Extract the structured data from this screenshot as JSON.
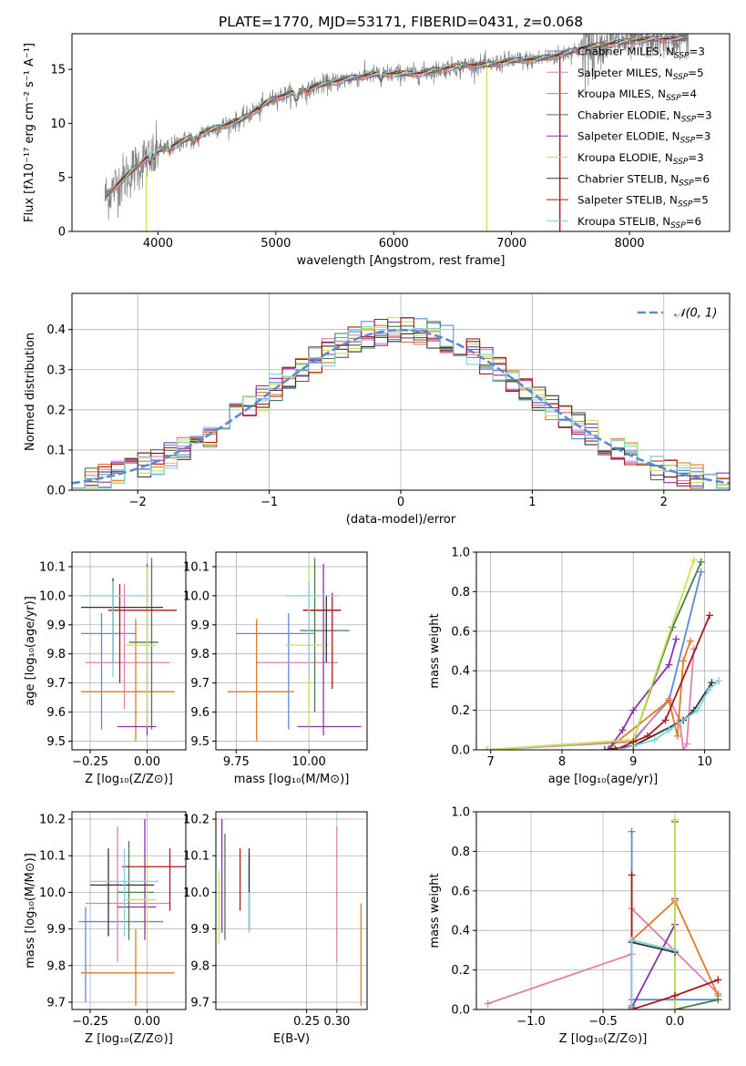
{
  "page": {
    "title": "PLATE=1770, MJD=53171, FIBERID=0431, z=0.068"
  },
  "colors": {
    "Chabrier MILES": "#5b8bd6",
    "Salpeter MILES": "#e07fb0",
    "Kroupa MILES": "#e07b22",
    "Chabrier ELODIE": "#4a7a4a",
    "Salpeter ELODIE": "#8e2fb0",
    "Kroupa ELODIE": "#c8e64a",
    "Chabrier STELIB": "#333333",
    "Salpeter STELIB": "#b01818",
    "Kroupa STELIB": "#7fd3dc",
    "data": "#808080",
    "normal": "#5b8bd6"
  },
  "chart_data": [
    {
      "id": "spectrum",
      "type": "line",
      "title": "PLATE=1770, MJD=53171, FIBERID=0431, z=0.068",
      "xlabel": "wavelength [Angstrom, rest frame]",
      "ylabel": "Flux [fλ10⁻¹⁷ erg cm⁻² s⁻¹ A⁻¹]",
      "xlim": [
        3270,
        8850
      ],
      "ylim": [
        0,
        18.3
      ],
      "xticks": [
        4000,
        5000,
        6000,
        7000,
        8000
      ],
      "yticks": [
        0,
        5,
        10,
        15
      ],
      "grid": false,
      "legend_placement": "upper right",
      "legend": [
        {
          "label": "Chabrier MILES",
          "nssp": "3"
        },
        {
          "label": "Salpeter MILES",
          "nssp": "5"
        },
        {
          "label": "Kroupa MILES",
          "nssp": "4"
        },
        {
          "label": "Chabrier ELODIE",
          "nssp": "3"
        },
        {
          "label": "Salpeter ELODIE",
          "nssp": "3"
        },
        {
          "label": "Kroupa ELODIE",
          "nssp": "3"
        },
        {
          "label": "Chabrier STELIB",
          "nssp": "6"
        },
        {
          "label": "Salpeter STELIB",
          "nssp": "5"
        },
        {
          "label": "Kroupa STELIB",
          "nssp": "6"
        }
      ],
      "continuum": [
        [
          3550,
          3.2
        ],
        [
          3650,
          4.3
        ],
        [
          3800,
          5.8
        ],
        [
          3900,
          6.8
        ],
        [
          4000,
          7.5
        ],
        [
          4100,
          7.8
        ],
        [
          4200,
          8.3
        ],
        [
          4300,
          8.8
        ],
        [
          4500,
          9.6
        ],
        [
          4700,
          10.3
        ],
        [
          4861,
          11.5
        ],
        [
          5000,
          12.4
        ],
        [
          5200,
          13.0
        ],
        [
          5400,
          13.6
        ],
        [
          5600,
          14.1
        ],
        [
          5800,
          14.5
        ],
        [
          6000,
          14.6
        ],
        [
          6200,
          14.6
        ],
        [
          6400,
          15.0
        ],
        [
          6600,
          15.4
        ],
        [
          6800,
          15.4
        ],
        [
          7000,
          15.8
        ],
        [
          7200,
          15.9
        ],
        [
          7400,
          16.3
        ],
        [
          7600,
          17.0
        ],
        [
          7800,
          17.3
        ],
        [
          8000,
          17.6
        ],
        [
          8200,
          17.8
        ],
        [
          8400,
          17.8
        ],
        [
          8500,
          17.9
        ]
      ]
    },
    {
      "id": "residuals",
      "type": "line",
      "xlabel": "(data-model)/error",
      "ylabel": "Normed distribution",
      "xlim": [
        -2.5,
        2.5
      ],
      "ylim": [
        0,
        0.49
      ],
      "xticks": [
        -2,
        -1,
        0,
        1,
        2
      ],
      "yticks": [
        0.0,
        0.1,
        0.2,
        0.3,
        0.4
      ],
      "grid": true,
      "legend_placement": "upper right",
      "legend": [
        {
          "label": "𝒩(0, 1)"
        }
      ],
      "bin_width": 0.1
    },
    {
      "id": "age-vs-Z",
      "type": "scatter",
      "xlabel": "Z [log₁₀(Z/Z⊙)]",
      "ylabel": "age  [log₁₀(age/yr)]",
      "xlim": [
        -0.33,
        0.17
      ],
      "ylim": [
        9.47,
        10.15
      ],
      "xticks": [
        -0.25,
        0.0
      ],
      "yticks": [
        9.5,
        9.6,
        9.7,
        9.8,
        9.9,
        10.0,
        10.1
      ],
      "grid": true,
      "points": [
        {
          "model": "Chabrier MILES",
          "x": -0.2,
          "xlo": -0.29,
          "xhi": -0.05,
          "y": 9.87,
          "ylo": 9.54,
          "yhi": 9.94
        },
        {
          "model": "Salpeter MILES",
          "x": -0.1,
          "xlo": -0.27,
          "xhi": 0.1,
          "y": 9.77,
          "ylo": 9.61,
          "yhi": 10.04
        },
        {
          "model": "Kroupa MILES",
          "x": -0.05,
          "xlo": -0.29,
          "xhi": 0.12,
          "y": 9.67,
          "ylo": 9.5,
          "yhi": 9.92
        },
        {
          "model": "Chabrier ELODIE",
          "x": 0.02,
          "xlo": -0.08,
          "xhi": 0.05,
          "y": 9.84,
          "ylo": 9.54,
          "yhi": 10.13
        },
        {
          "model": "Salpeter ELODIE",
          "x": 0.0,
          "xlo": -0.13,
          "xhi": 0.04,
          "y": 9.55,
          "ylo": 9.52,
          "yhi": 10.11
        },
        {
          "model": "Kroupa ELODIE",
          "x": 0.0,
          "xlo": -0.1,
          "xhi": 0.04,
          "y": 9.83,
          "ylo": 9.55,
          "yhi": 10.1
        },
        {
          "model": "Chabrier STELIB",
          "x": -0.15,
          "xlo": -0.29,
          "xhi": 0.07,
          "y": 9.96,
          "ylo": 9.77,
          "yhi": 10.06
        },
        {
          "model": "Salpeter STELIB",
          "x": -0.12,
          "xlo": -0.17,
          "xhi": 0.13,
          "y": 9.95,
          "ylo": 9.7,
          "yhi": 10.04
        },
        {
          "model": "Kroupa STELIB",
          "x": -0.15,
          "xlo": -0.29,
          "xhi": 0.0,
          "y": 10.0,
          "ylo": 9.72,
          "yhi": 10.05
        }
      ]
    },
    {
      "id": "age-vs-mass",
      "type": "scatter",
      "xlabel": "mass [log₁₀(M/M⊙)]",
      "ylabel": "",
      "xlim": [
        9.68,
        10.2
      ],
      "ylim": [
        9.47,
        10.15
      ],
      "xticks": [
        9.75,
        10.0
      ],
      "yticks": [
        9.5,
        9.6,
        9.7,
        9.8,
        9.9,
        10.0,
        10.1
      ],
      "grid": true,
      "points": [
        {
          "model": "Chabrier MILES",
          "x": 9.93,
          "xlo": 9.75,
          "xhi": 10.02,
          "y": 9.87,
          "ylo": 9.54,
          "yhi": 9.94
        },
        {
          "model": "Salpeter MILES",
          "x": 10.0,
          "xlo": 9.82,
          "xhi": 10.1,
          "y": 9.77,
          "ylo": 9.61,
          "yhi": 10.04
        },
        {
          "model": "Kroupa MILES",
          "x": 9.82,
          "xlo": 9.72,
          "xhi": 9.95,
          "y": 9.67,
          "ylo": 9.5,
          "yhi": 9.92
        },
        {
          "model": "Chabrier ELODIE",
          "x": 10.02,
          "xlo": 9.97,
          "xhi": 10.14,
          "y": 9.88,
          "ylo": 9.6,
          "yhi": 10.13
        },
        {
          "model": "Salpeter ELODIE",
          "x": 10.05,
          "xlo": 9.96,
          "xhi": 10.18,
          "y": 9.55,
          "ylo": 9.52,
          "yhi": 10.11
        },
        {
          "model": "Kroupa ELODIE",
          "x": 10.0,
          "xlo": 9.92,
          "xhi": 10.07,
          "y": 9.83,
          "ylo": 9.55,
          "yhi": 10.1
        },
        {
          "model": "Chabrier STELIB",
          "x": 10.06,
          "xlo": 9.98,
          "xhi": 10.11,
          "y": 9.95,
          "ylo": 9.77,
          "yhi": 10.0
        },
        {
          "model": "Salpeter STELIB",
          "x": 10.08,
          "xlo": 9.98,
          "xhi": 10.11,
          "y": 9.95,
          "ylo": 9.68,
          "yhi": 10.01
        },
        {
          "model": "Kroupa STELIB",
          "x": 10.0,
          "xlo": 9.92,
          "xhi": 10.1,
          "y": 10.0,
          "ylo": 9.72,
          "yhi": 10.05
        }
      ]
    },
    {
      "id": "massweight-vs-age",
      "type": "line",
      "xlabel": "age  [log₁₀(age/yr)]",
      "ylabel": "mass weight",
      "xlim": [
        6.8,
        10.35
      ],
      "ylim": [
        0.0,
        1.0
      ],
      "xticks": [
        7,
        8,
        9,
        10
      ],
      "yticks": [
        0.0,
        0.2,
        0.4,
        0.6,
        0.8,
        1.0
      ],
      "grid": true,
      "series": [
        {
          "model": "Chabrier MILES",
          "points": [
            [
              9.0,
              0.05
            ],
            [
              9.5,
              0.25
            ],
            [
              9.95,
              0.9
            ]
          ]
        },
        {
          "model": "Salpeter MILES",
          "points": [
            [
              6.95,
              0.0
            ],
            [
              9.0,
              0.04
            ],
            [
              9.5,
              0.26
            ],
            [
              9.65,
              0.15
            ],
            [
              9.7,
              0.0
            ],
            [
              9.75,
              0.03
            ],
            [
              9.85,
              0.51
            ]
          ]
        },
        {
          "model": "Kroupa MILES",
          "points": [
            [
              8.7,
              0.02
            ],
            [
              9.5,
              0.25
            ],
            [
              9.62,
              0.07
            ],
            [
              9.7,
              0.45
            ],
            [
              9.8,
              0.55
            ]
          ]
        },
        {
          "model": "Chabrier ELODIE",
          "points": [
            [
              6.95,
              0.0
            ],
            [
              9.0,
              0.05
            ],
            [
              9.55,
              0.62
            ],
            [
              9.95,
              0.95
            ]
          ]
        },
        {
          "model": "Salpeter ELODIE",
          "points": [
            [
              8.65,
              0.0
            ],
            [
              8.85,
              0.1
            ],
            [
              9.0,
              0.2
            ],
            [
              9.5,
              0.43
            ],
            [
              9.6,
              0.56
            ]
          ]
        },
        {
          "model": "Kroupa ELODIE",
          "points": [
            [
              6.95,
              0.0
            ],
            [
              9.0,
              0.05
            ],
            [
              9.85,
              0.96
            ]
          ]
        },
        {
          "model": "Chabrier STELIB",
          "points": [
            [
              8.6,
              0.0
            ],
            [
              9.0,
              0.02
            ],
            [
              9.7,
              0.15
            ],
            [
              9.85,
              0.2
            ],
            [
              10.1,
              0.34
            ]
          ]
        },
        {
          "model": "Salpeter STELIB",
          "points": [
            [
              8.75,
              0.0
            ],
            [
              9.0,
              0.04
            ],
            [
              9.2,
              0.07
            ],
            [
              9.45,
              0.15
            ],
            [
              10.07,
              0.68
            ]
          ]
        },
        {
          "model": "Kroupa STELIB",
          "points": [
            [
              8.8,
              0.0
            ],
            [
              9.3,
              0.05
            ],
            [
              9.5,
              0.1
            ],
            [
              9.9,
              0.2
            ],
            [
              10.05,
              0.3
            ],
            [
              10.2,
              0.35
            ]
          ]
        }
      ]
    },
    {
      "id": "mass-vs-Z",
      "type": "scatter",
      "xlabel": "Z [log₁₀(Z/Z⊙)]",
      "ylabel": "mass [log₁₀(M/M⊙)]",
      "xlim": [
        -0.33,
        0.17
      ],
      "ylim": [
        9.68,
        10.22
      ],
      "xticks": [
        -0.25,
        0.0
      ],
      "yticks": [
        9.7,
        9.8,
        9.9,
        10.0,
        10.1,
        10.2
      ],
      "grid": true,
      "points": [
        {
          "model": "Chabrier MILES",
          "x": -0.27,
          "xlo": -0.3,
          "xhi": 0.07,
          "y": 9.92,
          "ylo": 9.7,
          "yhi": 9.96
        },
        {
          "model": "Salpeter MILES",
          "x": -0.13,
          "xlo": -0.27,
          "xhi": 0.1,
          "y": 9.97,
          "ylo": 9.81,
          "yhi": 10.18
        },
        {
          "model": "Kroupa MILES",
          "x": -0.05,
          "xlo": -0.29,
          "xhi": 0.12,
          "y": 9.78,
          "ylo": 9.69,
          "yhi": 9.9
        },
        {
          "model": "Chabrier ELODIE",
          "x": -0.08,
          "xlo": -0.13,
          "xhi": 0.03,
          "y": 10.0,
          "ylo": 9.87,
          "yhi": 10.14
        },
        {
          "model": "Salpeter ELODIE",
          "x": -0.01,
          "xlo": -0.13,
          "xhi": 0.04,
          "y": 9.96,
          "ylo": 9.87,
          "yhi": 10.2
        },
        {
          "model": "Kroupa ELODIE",
          "x": 0.0,
          "xlo": -0.1,
          "xhi": 0.04,
          "y": 9.98,
          "ylo": 9.87,
          "yhi": 10.1
        },
        {
          "model": "Chabrier STELIB",
          "x": -0.17,
          "xlo": -0.25,
          "xhi": 0.03,
          "y": 10.02,
          "ylo": 9.88,
          "yhi": 10.12
        },
        {
          "model": "Salpeter STELIB",
          "x": 0.1,
          "xlo": -0.11,
          "xhi": 0.17,
          "y": 10.07,
          "ylo": 9.95,
          "yhi": 10.12
        },
        {
          "model": "Kroupa STELIB",
          "x": -0.1,
          "xlo": -0.25,
          "xhi": 0.05,
          "y": 10.03,
          "ylo": 9.88,
          "yhi": 10.12
        }
      ]
    },
    {
      "id": "mass-vs-ebv",
      "type": "scatter",
      "xlabel": "E(B-V)",
      "ylabel": "",
      "xlim": [
        0.1,
        0.35
      ],
      "ylim": [
        9.68,
        10.22
      ],
      "xticks": [
        0.25,
        0.3
      ],
      "yticks": [
        9.7,
        9.8,
        9.9,
        10.0,
        10.1,
        10.2
      ],
      "grid": true,
      "points": [
        {
          "model": "Chabrier MILES",
          "x": 0.155,
          "ylo": 9.89,
          "yhi": 10.1
        },
        {
          "model": "Salpeter MILES",
          "x": 0.3,
          "ylo": 9.81,
          "yhi": 10.18
        },
        {
          "model": "Kroupa MILES",
          "x": 0.34,
          "ylo": 9.69,
          "yhi": 9.97
        },
        {
          "model": "Chabrier ELODIE",
          "x": 0.115,
          "ylo": 9.87,
          "yhi": 10.16
        },
        {
          "model": "Salpeter ELODIE",
          "x": 0.11,
          "ylo": 9.89,
          "yhi": 10.2
        },
        {
          "model": "Kroupa ELODIE",
          "x": 0.105,
          "ylo": 9.86,
          "yhi": 10.06
        },
        {
          "model": "Chabrier STELIB",
          "x": 0.155,
          "ylo": 9.9,
          "yhi": 10.12
        },
        {
          "model": "Salpeter STELIB",
          "x": 0.14,
          "ylo": 9.95,
          "yhi": 10.12
        },
        {
          "model": "Kroupa STELIB",
          "x": 0.155,
          "ylo": 9.89,
          "yhi": 10.0
        }
      ]
    },
    {
      "id": "massweight-vs-Z",
      "type": "line",
      "xlabel": "Z [log₁₀(Z/Z⊙)]",
      "ylabel": "mass weight",
      "xlim": [
        -1.38,
        0.38
      ],
      "ylim": [
        0.0,
        1.0
      ],
      "xticks": [
        -1.0,
        -0.5,
        0.0
      ],
      "yticks": [
        0.0,
        0.2,
        0.4,
        0.6,
        0.8,
        1.0
      ],
      "grid": true,
      "series": [
        {
          "model": "Chabrier MILES",
          "points": [
            [
              -0.3,
              0.9
            ],
            [
              -0.3,
              0.05
            ],
            [
              0.3,
              0.05
            ]
          ]
        },
        {
          "model": "Salpeter MILES",
          "points": [
            [
              -1.3,
              0.03
            ],
            [
              -0.3,
              0.28
            ],
            [
              -0.3,
              0.51
            ],
            [
              0.3,
              0.08
            ]
          ]
        },
        {
          "model": "Kroupa MILES",
          "points": [
            [
              -0.3,
              0.02
            ],
            [
              -0.3,
              0.35
            ],
            [
              0.0,
              0.55
            ],
            [
              0.3,
              0.07
            ]
          ]
        },
        {
          "model": "Chabrier ELODIE",
          "points": [
            [
              0.0,
              0.95
            ],
            [
              0.0,
              0.0
            ],
            [
              0.3,
              0.05
            ]
          ]
        },
        {
          "model": "Salpeter ELODIE",
          "points": [
            [
              -0.3,
              0.0
            ],
            [
              -0.3,
              0.01
            ],
            [
              0.0,
              0.43
            ],
            [
              0.0,
              0.56
            ]
          ]
        },
        {
          "model": "Kroupa ELODIE",
          "points": [
            [
              0.0,
              0.0
            ],
            [
              0.0,
              0.96
            ]
          ]
        },
        {
          "model": "Chabrier STELIB",
          "points": [
            [
              -0.3,
              0.0
            ],
            [
              -0.3,
              0.34
            ],
            [
              0.0,
              0.29
            ]
          ]
        },
        {
          "model": "Salpeter STELIB",
          "points": [
            [
              -0.3,
              0.68
            ],
            [
              -0.3,
              0.0
            ],
            [
              0.0,
              0.07
            ],
            [
              0.3,
              0.15
            ]
          ]
        },
        {
          "model": "Kroupa STELIB",
          "points": [
            [
              -0.3,
              0.0
            ],
            [
              -0.3,
              0.35
            ],
            [
              0.0,
              0.3
            ]
          ]
        }
      ]
    }
  ]
}
